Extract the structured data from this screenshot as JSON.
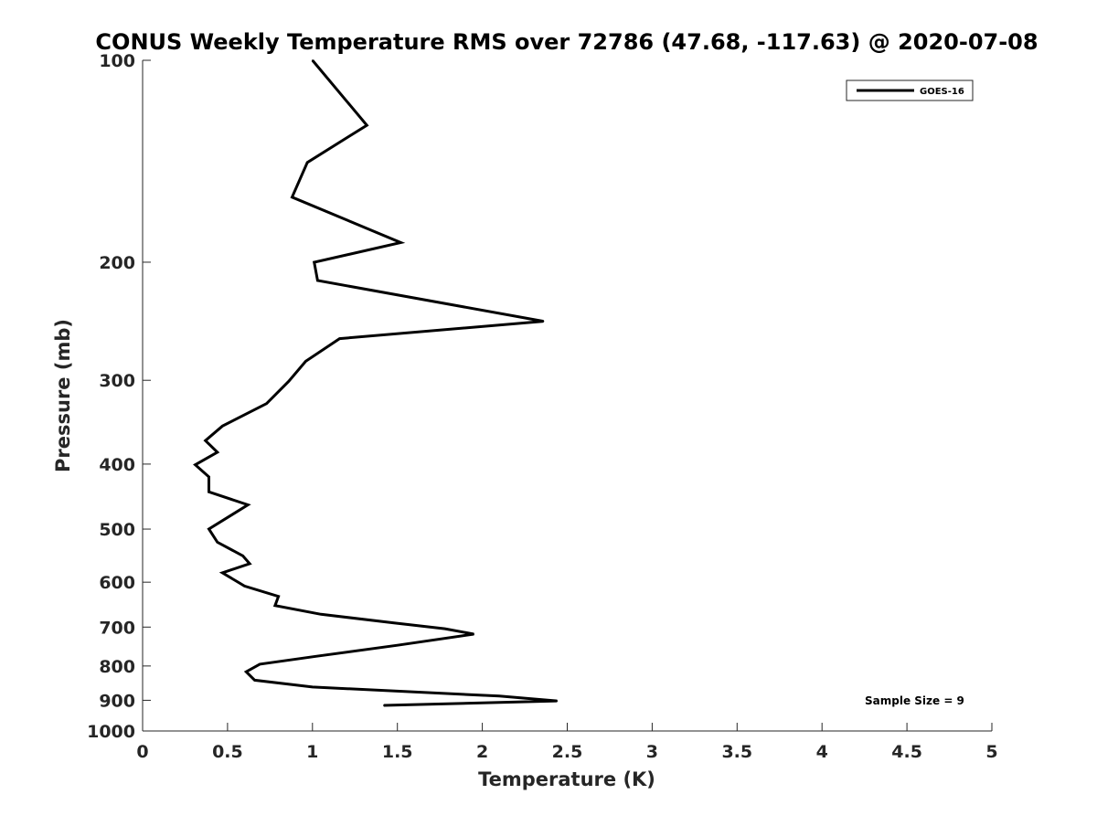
{
  "chart_data": {
    "type": "line",
    "title": "CONUS Weekly Temperature RMS over 72786 (47.68, -117.63) @ 2020-07-08",
    "xlabel": "Temperature (K)",
    "ylabel": "Pressure (mb)",
    "xlim": [
      0,
      5
    ],
    "ylim": [
      100,
      1000
    ],
    "y_scale": "log",
    "y_reversed": true,
    "grid": false,
    "legend_position": "top-right",
    "x_ticks": [
      "0",
      "0.5",
      "1",
      "1.5",
      "2",
      "2.5",
      "3",
      "3.5",
      "4",
      "4.5",
      "5"
    ],
    "x_tick_values": [
      0,
      0.5,
      1,
      1.5,
      2,
      2.5,
      3,
      3.5,
      4,
      4.5,
      5
    ],
    "y_ticks": [
      "100",
      "200",
      "300",
      "400",
      "500",
      "600",
      "700",
      "800",
      "900",
      "1000"
    ],
    "y_tick_values": [
      100,
      200,
      300,
      400,
      500,
      600,
      700,
      800,
      900,
      1000
    ],
    "annotation": "Sample Size = 9",
    "series": [
      {
        "name": "GOES-16",
        "color": "#000000",
        "x": [
          1.0,
          1.32,
          0.97,
          0.88,
          1.52,
          1.01,
          1.03,
          2.36,
          1.16,
          0.96,
          0.86,
          0.73,
          0.47,
          0.37,
          0.44,
          0.31,
          0.39,
          0.39,
          0.62,
          0.39,
          0.44,
          0.59,
          0.63,
          0.47,
          0.6,
          0.8,
          0.78,
          1.05,
          1.48,
          1.78,
          1.95,
          1.5,
          1.02,
          0.69,
          0.61,
          0.66,
          1.0,
          2.1,
          2.44,
          1.42
        ],
        "y": [
          100,
          125,
          142,
          160,
          187,
          200,
          213,
          245,
          260,
          281,
          301,
          325,
          351,
          369,
          384,
          401,
          418,
          440,
          460,
          500,
          523,
          548,
          563,
          581,
          608,
          630,
          650,
          670,
          690,
          704,
          717,
          745,
          774,
          795,
          816,
          840,
          860,
          887,
          902,
          916
        ]
      }
    ]
  }
}
